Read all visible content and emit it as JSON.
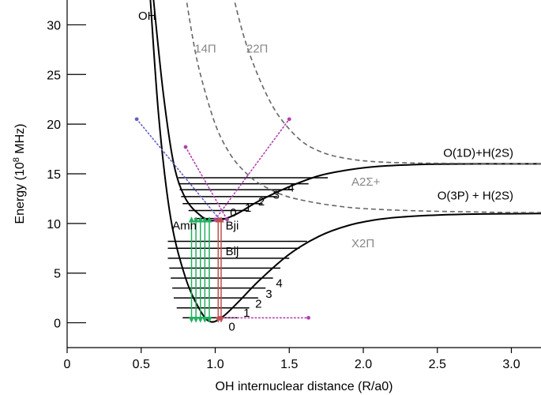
{
  "chart_data": {
    "type": "line",
    "title": "",
    "xlabel": "OH internuclear distance (R/a0)",
    "ylabel_main": "Energy (10",
    "ylabel_sup": "8",
    "ylabel_tail": " MHz)",
    "xlim": [
      0,
      3.2
    ],
    "ylim": [
      -2.5,
      32.5
    ],
    "x_ticks": [
      0,
      0.5,
      1.0,
      1.5,
      2.0,
      2.5,
      3.0
    ],
    "x_tick_labels": [
      "0",
      "0.5",
      "1.0",
      "1.5",
      "2.0",
      "2.5",
      "3.0"
    ],
    "y_ticks": [
      0,
      5,
      10,
      15,
      20,
      25,
      30
    ],
    "y_tick_labels": [
      "0",
      "5",
      "10",
      "15",
      "20",
      "25",
      "30"
    ],
    "grid": false,
    "colors": {
      "curve": "#000000",
      "dashed": "#666666",
      "dotted_purple": "#b040b0",
      "dotted_blue": "#6060c0",
      "green": "#22b060",
      "red": "#c05050",
      "gray_label": "#888888"
    },
    "series": [
      {
        "name": "X2Π",
        "style": "solid",
        "x": [
          0.56,
          0.62,
          0.7,
          0.8,
          0.9,
          0.97,
          1.05,
          1.15,
          1.3,
          1.5,
          1.7,
          1.9,
          2.1,
          2.3,
          2.5,
          2.8,
          3.2
        ],
        "y": [
          33,
          20.5,
          10.5,
          4.5,
          1.2,
          0.1,
          0.6,
          2.0,
          4.3,
          6.9,
          8.7,
          9.8,
          10.4,
          10.7,
          10.85,
          10.95,
          11.0
        ]
      },
      {
        "name": "A2Σ+",
        "style": "solid",
        "x": [
          0.58,
          0.65,
          0.72,
          0.8,
          0.9,
          0.97,
          1.05,
          1.15,
          1.3,
          1.5,
          1.7,
          1.9,
          2.1,
          2.3,
          2.5,
          2.8,
          3.2
        ],
        "y": [
          33,
          23,
          16,
          12.5,
          10.8,
          10.3,
          10.4,
          11.0,
          12.3,
          13.7,
          14.8,
          15.4,
          15.75,
          15.9,
          15.97,
          16.0,
          16.0
        ]
      },
      {
        "name": "14Π",
        "style": "dashed",
        "x": [
          0.8,
          0.85,
          0.9,
          1.0,
          1.1,
          1.2,
          1.3,
          1.45,
          1.6,
          1.8,
          2.0,
          2.3,
          2.6,
          3.0,
          3.2
        ],
        "y": [
          33,
          28.5,
          25,
          20,
          17,
          15.2,
          14.0,
          12.9,
          12.3,
          11.8,
          11.5,
          11.3,
          11.2,
          11.1,
          11.1
        ]
      },
      {
        "name": "22Π",
        "style": "dashed",
        "x": [
          1.12,
          1.2,
          1.3,
          1.4,
          1.5,
          1.6,
          1.7,
          1.8,
          1.95,
          2.1,
          2.3,
          2.6,
          3.2
        ],
        "y": [
          33,
          28.5,
          24.5,
          21.5,
          19.5,
          18.1,
          17.3,
          16.8,
          16.4,
          16.2,
          16.1,
          16.05,
          16.0
        ]
      }
    ],
    "vibrational_levels": {
      "X2Π": {
        "y": [
          0.5,
          1.5,
          2.5,
          3.5,
          4.5,
          5.5,
          6.5,
          7.5,
          8.2
        ],
        "x_start": [
          0.78,
          0.74,
          0.72,
          0.71,
          0.7,
          0.69,
          0.68,
          0.68,
          0.68
        ],
        "x_end": [
          1.16,
          1.23,
          1.29,
          1.34,
          1.39,
          1.44,
          1.5,
          1.57,
          1.62
        ]
      },
      "A2Σ+": {
        "y": [
          10.5,
          11.3,
          12.0,
          12.7,
          13.4,
          14.0,
          14.6
        ],
        "x_start": [
          0.86,
          0.82,
          0.78,
          0.77,
          0.76,
          0.75,
          0.75
        ],
        "x_end": [
          1.09,
          1.22,
          1.32,
          1.42,
          1.52,
          1.63,
          1.76
        ]
      }
    },
    "transitions": {
      "green_x": [
        0.84,
        0.87,
        0.9,
        0.93,
        0.96
      ],
      "green_y": [
        10.4,
        0.3
      ],
      "red_x": [
        1.02,
        1.04
      ],
      "red_y": [
        10.4,
        0.3
      ]
    },
    "dotted_lines": [
      {
        "color": "dotted_blue",
        "x": [
          0.47,
          1.03
        ],
        "y": [
          20.5,
          10.4
        ]
      },
      {
        "color": "dotted_purple",
        "x": [
          0.8,
          1.08
        ],
        "y": [
          17.7,
          10.4
        ]
      },
      {
        "color": "dotted_purple",
        "x": [
          1.0,
          1.5
        ],
        "y": [
          10.4,
          20.5
        ]
      },
      {
        "color": "dotted_purple",
        "x": [
          1.03,
          1.63
        ],
        "y": [
          0.5,
          0.5
        ]
      }
    ],
    "annotations": [
      {
        "text": "OH",
        "x": 0.48,
        "y": 30.5,
        "color": "#000000",
        "size": 15,
        "font": "sans"
      },
      {
        "text": "14Π",
        "x": 0.86,
        "y": 27.2,
        "color": "#888888",
        "size": 15,
        "font": "serif"
      },
      {
        "text": "22Π",
        "x": 1.21,
        "y": 27.2,
        "color": "#888888",
        "size": 15,
        "font": "serif"
      },
      {
        "text": "O(1D)+H(2S)",
        "x": 2.54,
        "y": 16.7,
        "color": "#000000",
        "size": 15,
        "font": "sans"
      },
      {
        "text": "A2Σ+",
        "x": 1.92,
        "y": 13.8,
        "color": "#888888",
        "size": 15,
        "font": "serif"
      },
      {
        "text": "O(3P) + H(2S)",
        "x": 2.5,
        "y": 12.4,
        "color": "#000000",
        "size": 15,
        "font": "sans"
      },
      {
        "text": "X2Π",
        "x": 1.92,
        "y": 7.6,
        "color": "#888888",
        "size": 15,
        "font": "serif"
      },
      {
        "text": "Amn",
        "x": 0.71,
        "y": 9.4,
        "color": "#000000",
        "size": 15,
        "font": "sans"
      },
      {
        "text": "Bji",
        "x": 1.07,
        "y": 9.4,
        "color": "#000000",
        "size": 15,
        "font": "sans"
      },
      {
        "text": "Bij",
        "x": 1.07,
        "y": 6.8,
        "color": "#000000",
        "size": 15,
        "font": "sans"
      },
      {
        "text": "0",
        "x": 1.1,
        "y": 10.7,
        "color": "#000000",
        "size": 15,
        "font": "sans"
      },
      {
        "text": "1",
        "x": 1.2,
        "y": 11.2,
        "color": "#000000",
        "size": 15,
        "font": "sans"
      },
      {
        "text": "2",
        "x": 1.29,
        "y": 11.8,
        "color": "#000000",
        "size": 15,
        "font": "sans"
      },
      {
        "text": "3",
        "x": 1.39,
        "y": 12.5,
        "color": "#000000",
        "size": 15,
        "font": "sans"
      },
      {
        "text": "4",
        "x": 1.49,
        "y": 13.2,
        "color": "#000000",
        "size": 15,
        "font": "sans"
      },
      {
        "text": "0",
        "x": 1.09,
        "y": -0.8,
        "color": "#000000",
        "size": 15,
        "font": "sans"
      },
      {
        "text": "1",
        "x": 1.19,
        "y": 0.6,
        "color": "#000000",
        "size": 15,
        "font": "sans"
      },
      {
        "text": "2",
        "x": 1.27,
        "y": 1.5,
        "color": "#000000",
        "size": 15,
        "font": "sans"
      },
      {
        "text": "3",
        "x": 1.34,
        "y": 2.5,
        "color": "#000000",
        "size": 15,
        "font": "sans"
      },
      {
        "text": "4",
        "x": 1.41,
        "y": 3.6,
        "color": "#000000",
        "size": 15,
        "font": "sans"
      }
    ]
  }
}
